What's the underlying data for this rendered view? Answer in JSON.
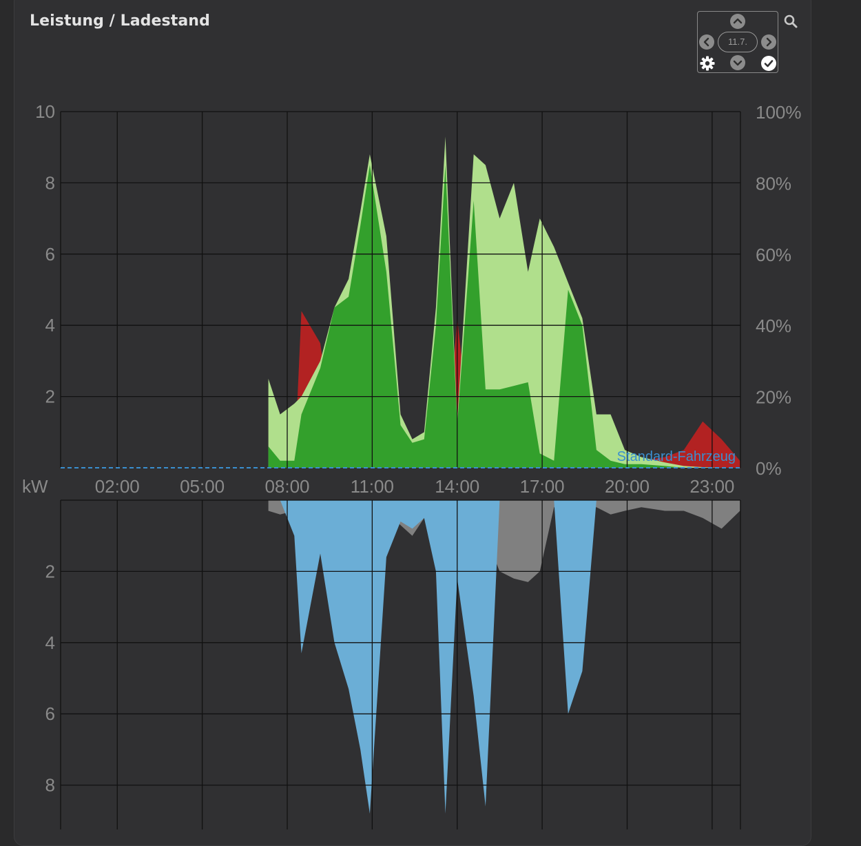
{
  "card": {
    "title": "Leistung / Ladestand"
  },
  "nav": {
    "date": "11.7.",
    "icons": [
      "chevron-up-icon",
      "chevron-left-icon",
      "chevron-right-icon",
      "chevron-down-icon",
      "gear-icon",
      "check-icon",
      "search-icon"
    ]
  },
  "colors": {
    "background": "#303032",
    "grid": "#111111",
    "axis_text": "#8a8a8a",
    "pv_light": "#b0df8c",
    "pv_dark": "#33a02c",
    "grid_import": "#b22222",
    "battery": "#6baed6",
    "house": "#808080",
    "soc_line": "#3a8fd0"
  },
  "chart_data": [
    {
      "type": "area",
      "title": "",
      "xlabel": "",
      "ylabel": "",
      "ylabel_right": "",
      "x_ticks": [
        "02:00",
        "05:00",
        "08:00",
        "11:00",
        "14:00",
        "17:00",
        "20:00",
        "23:00"
      ],
      "xlim": [
        "00:00",
        "24:00"
      ],
      "ylim": [
        0,
        10
      ],
      "y_ticks": [
        "10",
        "8",
        "6",
        "4",
        "2"
      ],
      "ylim_right": [
        0,
        100
      ],
      "y_ticks_right": [
        "100%",
        "80%",
        "60%",
        "40%",
        "20%",
        "0%"
      ],
      "grid": true,
      "annotation": "Standard-Fahrzeug",
      "x": [
        "07:20",
        "07:45",
        "08:15",
        "08:30",
        "09:10",
        "09:40",
        "10:10",
        "10:35",
        "10:55",
        "11:30",
        "12:00",
        "12:25",
        "12:50",
        "13:15",
        "13:35",
        "14:00",
        "14:35",
        "15:00",
        "15:30",
        "16:00",
        "16:30",
        "16:55",
        "17:25",
        "17:55",
        "18:25",
        "18:55",
        "19:25",
        "19:55",
        "20:30",
        "21:20",
        "22:00",
        "22:40",
        "23:20",
        "23:59"
      ],
      "series": [
        {
          "values": [
            2.5,
            1.5,
            1.8,
            2.0,
            3.0,
            4.5,
            5.3,
            7.2,
            8.8,
            6.5,
            1.5,
            0.8,
            1.0,
            4.5,
            9.3,
            1.3,
            8.8,
            8.5,
            7.0,
            8.0,
            5.5,
            7.0,
            6.2,
            5.2,
            4.2,
            1.5,
            1.5,
            0.5,
            0.3,
            0.15,
            0.05,
            0.02,
            0.0,
            0.0
          ]
        },
        {
          "values": [
            0.6,
            0.2,
            0.2,
            1.5,
            2.8,
            4.5,
            4.8,
            6.8,
            8.5,
            5.5,
            1.2,
            0.7,
            0.8,
            4.0,
            8.5,
            1.2,
            7.5,
            2.2,
            2.2,
            2.3,
            2.4,
            0.4,
            0.2,
            5.0,
            4.0,
            0.5,
            0.2,
            0.1,
            0.1,
            0.05,
            0.0,
            0.0,
            0.0,
            0.0
          ]
        },
        {
          "values": [
            0.0,
            0.0,
            0.0,
            4.4,
            3.5,
            0.6,
            0.0,
            0.0,
            0.0,
            0.0,
            0.0,
            0.8,
            0.2,
            0.0,
            0.0,
            4.2,
            0.0,
            0.0,
            0.0,
            0.0,
            0.0,
            0.0,
            0.0,
            0.0,
            0.0,
            0.0,
            0.0,
            0.0,
            0.2,
            0.3,
            0.5,
            1.3,
            0.8,
            0.2
          ]
        }
      ]
    },
    {
      "type": "area",
      "title": "",
      "ylabel": "kW",
      "ylim": [
        0,
        9
      ],
      "y_ticks": [
        "2",
        "4",
        "6",
        "8"
      ],
      "inverted": true,
      "grid": true,
      "x": [
        "07:20",
        "07:45",
        "08:15",
        "08:30",
        "09:10",
        "09:40",
        "10:10",
        "10:35",
        "10:55",
        "11:30",
        "12:00",
        "12:25",
        "12:50",
        "13:15",
        "13:35",
        "14:00",
        "14:35",
        "15:00",
        "15:30",
        "16:00",
        "16:30",
        "16:55",
        "17:25",
        "17:55",
        "18:25",
        "18:55",
        "19:25",
        "19:55",
        "20:30",
        "21:20",
        "22:00",
        "22:40",
        "23:20",
        "23:59"
      ],
      "series": [
        {
          "values": [
            0.3,
            0.4,
            0.3,
            0.2,
            0.4,
            0.6,
            0.5,
            0.2,
            0.6,
            0.3,
            0.7,
            1.0,
            0.5,
            0.4,
            0.6,
            0.2,
            0.2,
            1.0,
            2.0,
            2.2,
            2.3,
            2.0,
            0.2,
            0.3,
            0.3,
            0.2,
            0.4,
            0.3,
            0.2,
            0.3,
            0.3,
            0.5,
            0.8,
            0.3
          ]
        },
        {
          "values": [
            0.0,
            0.0,
            1.0,
            4.3,
            1.5,
            4.0,
            5.3,
            7.0,
            8.8,
            1.6,
            0.6,
            0.8,
            0.5,
            2.0,
            8.8,
            2.2,
            5.5,
            8.6,
            0.0,
            0.0,
            0.0,
            0.0,
            0.0,
            6.0,
            4.8,
            0.0,
            0.0,
            0.0,
            0.0,
            0.0,
            0.0,
            0.0,
            0.0,
            0.0
          ]
        }
      ]
    }
  ]
}
